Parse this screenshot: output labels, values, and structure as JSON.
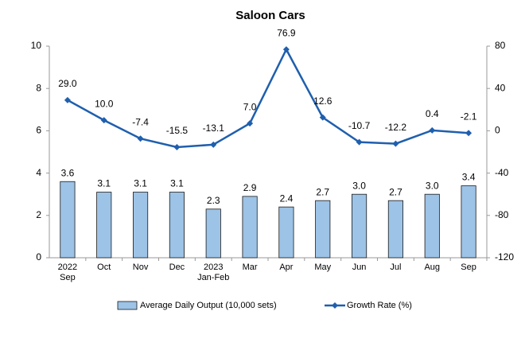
{
  "chart_data": {
    "type": "bar-line",
    "title": "Saloon Cars",
    "categories": [
      "2022 Sep",
      "Oct",
      "Nov",
      "Dec",
      "2023 Jan-Feb",
      "Mar",
      "Apr",
      "May",
      "Jun",
      "Jul",
      "Aug",
      "Sep"
    ],
    "series": [
      {
        "name": "Average Daily Output (10,000 sets)",
        "type": "bar",
        "color": "#9dc3e6",
        "values": [
          3.6,
          3.1,
          3.1,
          3.1,
          2.3,
          2.9,
          2.4,
          2.7,
          3.0,
          2.7,
          3.0,
          3.4
        ],
        "value_labels": [
          "3.6",
          "3.1",
          "3.1",
          "3.1",
          "2.3",
          "2.9",
          "2.4",
          "2.7",
          "3.0",
          "2.7",
          "3.0",
          "3.4"
        ]
      },
      {
        "name": "Growth Rate (%)",
        "type": "line",
        "axis": "y2",
        "color": "#1f5fae",
        "values": [
          29.0,
          10.0,
          -7.4,
          -15.5,
          -13.1,
          7.0,
          76.9,
          12.6,
          -10.7,
          -12.2,
          0.4,
          -2.1
        ],
        "value_labels": [
          "29.0",
          "10.0",
          "-7.4",
          "-15.5",
          "-13.1",
          "7.0",
          "76.9",
          "12.6",
          "-10.7",
          "-12.2",
          "0.4",
          "-2.1"
        ]
      }
    ],
    "ylim": [
      0,
      10
    ],
    "yticks": [
      0,
      2,
      4,
      6,
      8,
      10
    ],
    "y2lim": [
      -120,
      80
    ],
    "y2ticks": [
      -120,
      -80,
      -40,
      0,
      40,
      80
    ]
  }
}
